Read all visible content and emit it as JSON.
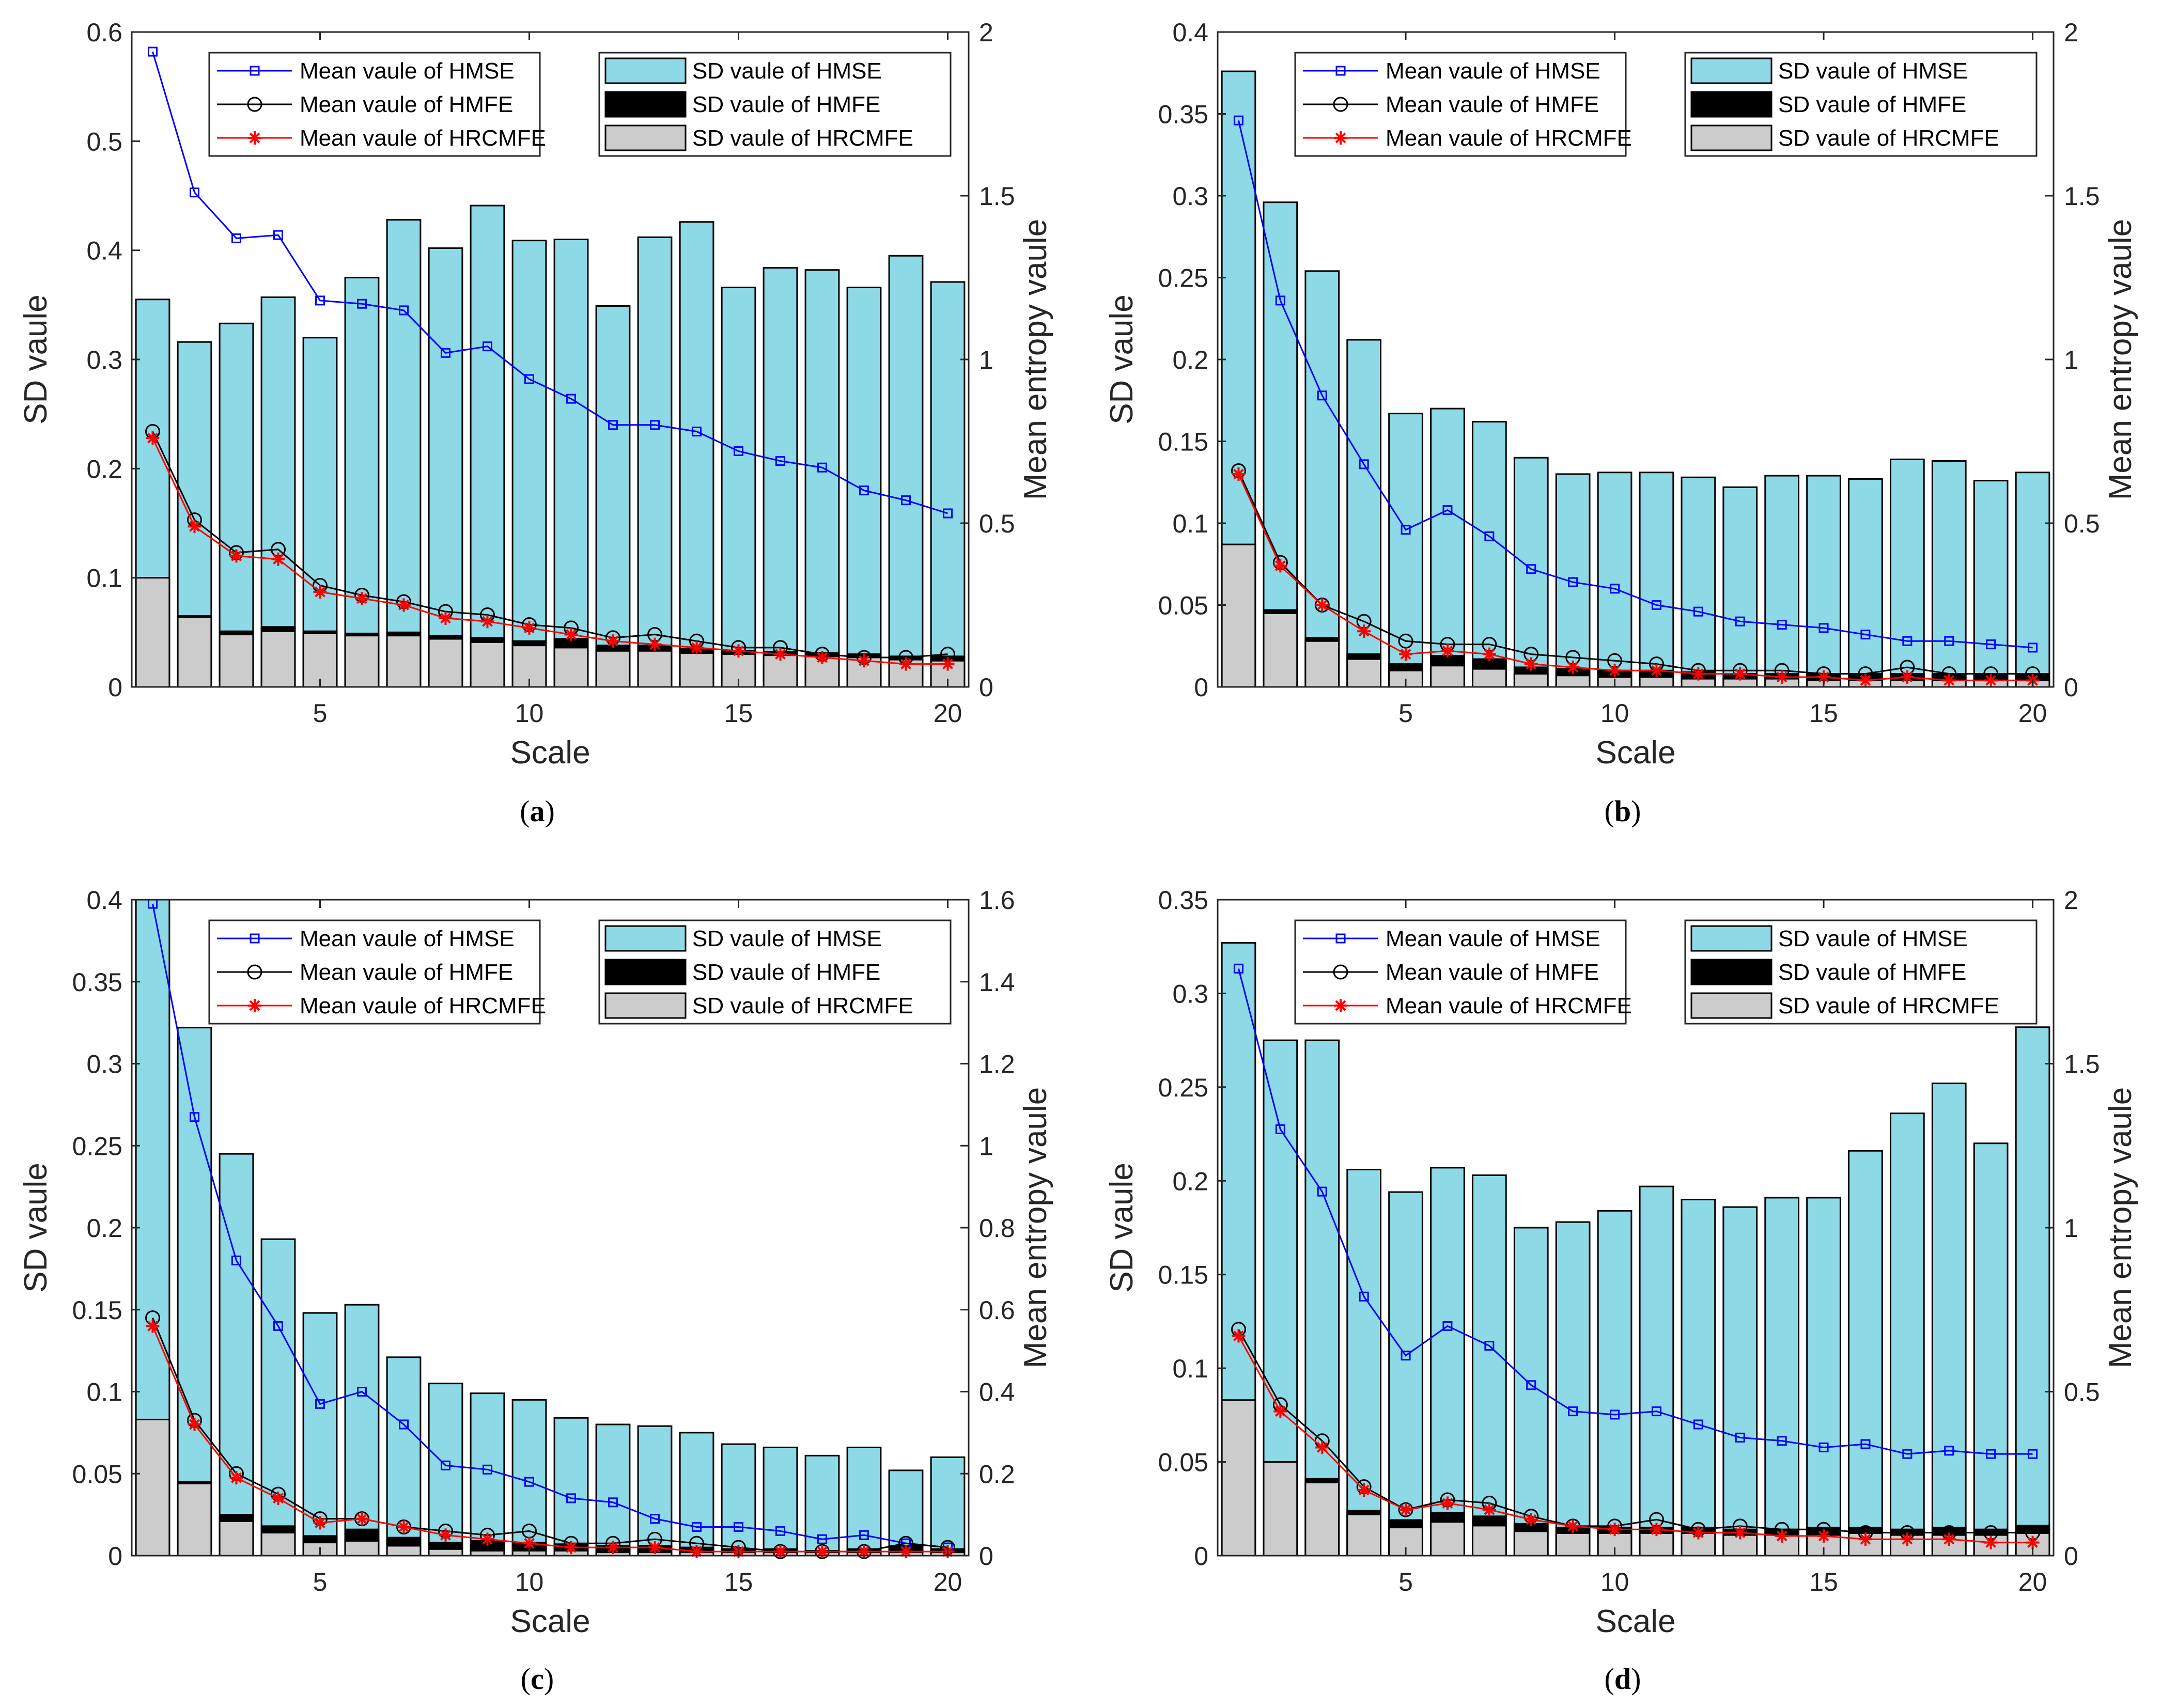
{
  "colors": {
    "hmse_bar": "#8ed9e6",
    "hmfe_bar": "#000000",
    "hrcmfe_bar": "#cccccc",
    "hmse_line": "#0000ff",
    "hmfe_line": "#000000",
    "hrcmfe_line": "#ff0000"
  },
  "chart_data": [
    {
      "type": "bar",
      "caption": {
        "open": "(",
        "letter": "a",
        "close": ")"
      },
      "xlabel": "Scale",
      "ylabel": "SD vaule",
      "y2label": "Mean entropy vaule",
      "x": [
        1,
        2,
        3,
        4,
        5,
        6,
        7,
        8,
        9,
        10,
        11,
        12,
        13,
        14,
        15,
        16,
        17,
        18,
        19,
        20
      ],
      "xlim": [
        0.5,
        20.5
      ],
      "ylim": [
        0,
        0.6
      ],
      "y2lim": [
        0,
        2
      ],
      "xticks": [
        "5",
        "10",
        "15",
        "20"
      ],
      "xtick_values": [
        5,
        10,
        15,
        20
      ],
      "yticks": [
        "0",
        "0.1",
        "0.2",
        "0.3",
        "0.4",
        "0.5",
        "0.6"
      ],
      "ytick_values": [
        0,
        0.1,
        0.2,
        0.3,
        0.4,
        0.5,
        0.6
      ],
      "y2ticks": [
        "0",
        "0.5",
        "1",
        "1.5",
        "2"
      ],
      "y2tick_values": [
        0,
        0.5,
        1,
        1.5,
        2
      ],
      "legend_lines": [
        "Mean vaule of HMSE",
        "Mean vaule of HMFE",
        "Mean vaule of HRCMFE"
      ],
      "legend_bars": [
        "SD vaule of HMSE",
        "SD vaule of HMFE",
        "SD vaule of HRCMFE"
      ],
      "sd_hmse": [
        0.355,
        0.316,
        0.333,
        0.357,
        0.32,
        0.375,
        0.428,
        0.402,
        0.441,
        0.409,
        0.41,
        0.349,
        0.412,
        0.426,
        0.366,
        0.384,
        0.382,
        0.366,
        0.395,
        0.371
      ],
      "sd_hmfe": [
        0.1,
        0.065,
        0.051,
        0.055,
        0.051,
        0.049,
        0.05,
        0.047,
        0.045,
        0.042,
        0.044,
        0.038,
        0.038,
        0.035,
        0.033,
        0.032,
        0.031,
        0.03,
        0.028,
        0.028
      ],
      "sd_hrcmfe": [
        0.1,
        0.064,
        0.048,
        0.051,
        0.049,
        0.047,
        0.047,
        0.044,
        0.041,
        0.038,
        0.036,
        0.033,
        0.033,
        0.031,
        0.03,
        0.029,
        0.028,
        0.027,
        0.025,
        0.024
      ],
      "mean_hmse": [
        1.94,
        1.51,
        1.37,
        1.38,
        1.18,
        1.17,
        1.15,
        1.02,
        1.04,
        0.94,
        0.88,
        0.8,
        0.8,
        0.78,
        0.72,
        0.69,
        0.67,
        0.6,
        0.57,
        0.53
      ],
      "mean_hmfe": [
        0.78,
        0.51,
        0.41,
        0.42,
        0.31,
        0.28,
        0.26,
        0.23,
        0.22,
        0.19,
        0.18,
        0.15,
        0.16,
        0.14,
        0.12,
        0.12,
        0.1,
        0.09,
        0.09,
        0.1
      ],
      "mean_hrcmfe": [
        0.76,
        0.49,
        0.4,
        0.39,
        0.29,
        0.27,
        0.25,
        0.21,
        0.2,
        0.18,
        0.16,
        0.14,
        0.13,
        0.12,
        0.11,
        0.1,
        0.09,
        0.08,
        0.07,
        0.07
      ]
    },
    {
      "type": "bar",
      "caption": {
        "open": "(",
        "letter": "b",
        "close": ")"
      },
      "xlabel": "Scale",
      "ylabel": "SD vaule",
      "y2label": "Mean entropy vaule",
      "x": [
        1,
        2,
        3,
        4,
        5,
        6,
        7,
        8,
        9,
        10,
        11,
        12,
        13,
        14,
        15,
        16,
        17,
        18,
        19,
        20
      ],
      "xlim": [
        0.5,
        20.5
      ],
      "ylim": [
        0,
        0.4
      ],
      "y2lim": [
        0,
        2
      ],
      "xticks": [
        "5",
        "10",
        "15",
        "20"
      ],
      "xtick_values": [
        5,
        10,
        15,
        20
      ],
      "yticks": [
        "0",
        "0.05",
        "0.1",
        "0.15",
        "0.2",
        "0.25",
        "0.3",
        "0.35",
        "0.4"
      ],
      "ytick_values": [
        0,
        0.05,
        0.1,
        0.15,
        0.2,
        0.25,
        0.3,
        0.35,
        0.4
      ],
      "y2ticks": [
        "0",
        "0.5",
        "1",
        "1.5",
        "2"
      ],
      "y2tick_values": [
        0,
        0.5,
        1,
        1.5,
        2
      ],
      "legend_lines": [
        "Mean vaule of HMSE",
        "Mean vaule of HMFE",
        "Mean vaule of HRCMFE"
      ],
      "legend_bars": [
        "SD vaule of HMSE",
        "SD vaule of HMFE",
        "SD vaule of HRCMFE"
      ],
      "sd_hmse": [
        0.376,
        0.296,
        0.254,
        0.212,
        0.167,
        0.17,
        0.162,
        0.14,
        0.13,
        0.131,
        0.131,
        0.128,
        0.122,
        0.129,
        0.129,
        0.127,
        0.139,
        0.138,
        0.126,
        0.131
      ],
      "sd_hmfe": [
        0.087,
        0.047,
        0.03,
        0.02,
        0.014,
        0.019,
        0.017,
        0.012,
        0.011,
        0.01,
        0.01,
        0.009,
        0.008,
        0.008,
        0.008,
        0.008,
        0.008,
        0.008,
        0.008,
        0.008
      ],
      "sd_hrcmfe": [
        0.087,
        0.045,
        0.028,
        0.017,
        0.01,
        0.013,
        0.011,
        0.008,
        0.007,
        0.006,
        0.006,
        0.005,
        0.005,
        0.005,
        0.004,
        0.004,
        0.004,
        0.004,
        0.004,
        0.004
      ],
      "mean_hmse": [
        1.73,
        1.18,
        0.89,
        0.68,
        0.48,
        0.54,
        0.46,
        0.36,
        0.32,
        0.3,
        0.25,
        0.23,
        0.2,
        0.19,
        0.18,
        0.16,
        0.14,
        0.14,
        0.13,
        0.12
      ],
      "mean_hmfe": [
        0.66,
        0.38,
        0.25,
        0.2,
        0.14,
        0.13,
        0.13,
        0.1,
        0.09,
        0.08,
        0.07,
        0.05,
        0.05,
        0.05,
        0.04,
        0.04,
        0.06,
        0.04,
        0.04,
        0.04
      ],
      "mean_hrcmfe": [
        0.65,
        0.37,
        0.25,
        0.17,
        0.1,
        0.11,
        0.1,
        0.07,
        0.06,
        0.05,
        0.05,
        0.04,
        0.04,
        0.03,
        0.03,
        0.02,
        0.03,
        0.02,
        0.02,
        0.02
      ]
    },
    {
      "type": "bar",
      "caption": {
        "open": "(",
        "letter": "c",
        "close": ")"
      },
      "xlabel": "Scale",
      "ylabel": "SD vaule",
      "y2label": "Mean entropy vaule",
      "x": [
        1,
        2,
        3,
        4,
        5,
        6,
        7,
        8,
        9,
        10,
        11,
        12,
        13,
        14,
        15,
        16,
        17,
        18,
        19,
        20
      ],
      "xlim": [
        0.5,
        20.5
      ],
      "ylim": [
        0,
        0.4
      ],
      "y2lim": [
        0,
        1.6
      ],
      "xticks": [
        "5",
        "10",
        "15",
        "20"
      ],
      "xtick_values": [
        5,
        10,
        15,
        20
      ],
      "yticks": [
        "0",
        "0.05",
        "0.1",
        "0.15",
        "0.2",
        "0.25",
        "0.3",
        "0.35",
        "0.4"
      ],
      "ytick_values": [
        0,
        0.05,
        0.1,
        0.15,
        0.2,
        0.25,
        0.3,
        0.35,
        0.4
      ],
      "y2ticks": [
        "0",
        "0.2",
        "0.4",
        "0.6",
        "0.8",
        "1",
        "1.2",
        "1.4",
        "1.6"
      ],
      "y2tick_values": [
        0,
        0.2,
        0.4,
        0.6,
        0.8,
        1,
        1.2,
        1.4,
        1.6
      ],
      "legend_lines": [
        "Mean vaule of HMSE",
        "Mean vaule of HMFE",
        "Mean vaule of HRCMFE"
      ],
      "legend_bars": [
        "SD vaule of HMSE",
        "SD vaule of HMFE",
        "SD vaule of HRCMFE"
      ],
      "sd_hmse": [
        0.402,
        0.322,
        0.245,
        0.193,
        0.148,
        0.153,
        0.121,
        0.105,
        0.099,
        0.095,
        0.084,
        0.08,
        0.079,
        0.075,
        0.068,
        0.066,
        0.061,
        0.066,
        0.052,
        0.06
      ],
      "sd_hmfe": [
        0.083,
        0.045,
        0.025,
        0.018,
        0.012,
        0.016,
        0.011,
        0.008,
        0.009,
        0.008,
        0.007,
        0.006,
        0.006,
        0.005,
        0.004,
        0.004,
        0.003,
        0.004,
        0.006,
        0.004
      ],
      "sd_hrcmfe": [
        0.083,
        0.044,
        0.021,
        0.014,
        0.008,
        0.009,
        0.006,
        0.004,
        0.003,
        0.003,
        0.003,
        0.002,
        0.002,
        0.002,
        0.002,
        0.002,
        0.002,
        0.002,
        0.002,
        0.002
      ],
      "mean_hmse": [
        1.59,
        1.07,
        0.72,
        0.56,
        0.37,
        0.4,
        0.32,
        0.22,
        0.21,
        0.18,
        0.14,
        0.13,
        0.09,
        0.07,
        0.07,
        0.06,
        0.04,
        0.05,
        0.03,
        0.02
      ],
      "mean_hmfe": [
        0.58,
        0.33,
        0.2,
        0.15,
        0.09,
        0.09,
        0.07,
        0.06,
        0.05,
        0.06,
        0.03,
        0.03,
        0.04,
        0.03,
        0.02,
        0.01,
        0.01,
        0.01,
        0.03,
        0.02
      ],
      "mean_hrcmfe": [
        0.56,
        0.32,
        0.19,
        0.14,
        0.08,
        0.09,
        0.07,
        0.05,
        0.04,
        0.03,
        0.02,
        0.02,
        0.02,
        0.01,
        0.01,
        0.01,
        0.01,
        0.01,
        0.01,
        0.01
      ]
    },
    {
      "type": "bar",
      "caption": {
        "open": "(",
        "letter": "d",
        "close": ")"
      },
      "xlabel": "Scale",
      "ylabel": "SD vaule",
      "y2label": "Mean entropy vaule",
      "x": [
        1,
        2,
        3,
        4,
        5,
        6,
        7,
        8,
        9,
        10,
        11,
        12,
        13,
        14,
        15,
        16,
        17,
        18,
        19,
        20
      ],
      "xlim": [
        0.5,
        20.5
      ],
      "ylim": [
        0,
        0.35
      ],
      "y2lim": [
        0,
        2
      ],
      "xticks": [
        "5",
        "10",
        "15",
        "20"
      ],
      "xtick_values": [
        5,
        10,
        15,
        20
      ],
      "yticks": [
        "0",
        "0.05",
        "0.1",
        "0.15",
        "0.2",
        "0.25",
        "0.3",
        "0.35"
      ],
      "ytick_values": [
        0,
        0.05,
        0.1,
        0.15,
        0.2,
        0.25,
        0.3,
        0.35
      ],
      "y2ticks": [
        "0",
        "0.5",
        "1",
        "1.5",
        "2"
      ],
      "y2tick_values": [
        0,
        0.5,
        1,
        1.5,
        2
      ],
      "legend_lines": [
        "Mean vaule of HMSE",
        "Mean vaule of HMFE",
        "Mean vaule of HRCMFE"
      ],
      "legend_bars": [
        "SD vaule of HMSE",
        "SD vaule of HMFE",
        "SD vaule of HRCMFE"
      ],
      "sd_hmse": [
        0.327,
        0.275,
        0.275,
        0.206,
        0.194,
        0.207,
        0.203,
        0.175,
        0.178,
        0.184,
        0.197,
        0.19,
        0.186,
        0.191,
        0.191,
        0.216,
        0.236,
        0.252,
        0.22,
        0.282
      ],
      "sd_hmfe": [
        0.083,
        0.05,
        0.041,
        0.024,
        0.019,
        0.023,
        0.021,
        0.017,
        0.015,
        0.015,
        0.015,
        0.015,
        0.014,
        0.014,
        0.015,
        0.015,
        0.014,
        0.015,
        0.014,
        0.016
      ],
      "sd_hrcmfe": [
        0.083,
        0.05,
        0.039,
        0.022,
        0.015,
        0.018,
        0.016,
        0.013,
        0.012,
        0.012,
        0.012,
        0.012,
        0.011,
        0.011,
        0.011,
        0.012,
        0.011,
        0.011,
        0.011,
        0.012
      ],
      "mean_hmse": [
        1.79,
        1.3,
        1.11,
        0.79,
        0.61,
        0.7,
        0.64,
        0.52,
        0.44,
        0.43,
        0.44,
        0.4,
        0.36,
        0.35,
        0.33,
        0.34,
        0.31,
        0.32,
        0.31,
        0.31
      ],
      "mean_hmfe": [
        0.69,
        0.46,
        0.35,
        0.21,
        0.14,
        0.17,
        0.16,
        0.12,
        0.09,
        0.09,
        0.11,
        0.08,
        0.09,
        0.08,
        0.08,
        0.07,
        0.07,
        0.07,
        0.07,
        0.07
      ],
      "mean_hrcmfe": [
        0.67,
        0.44,
        0.33,
        0.2,
        0.14,
        0.16,
        0.14,
        0.11,
        0.09,
        0.08,
        0.08,
        0.07,
        0.07,
        0.06,
        0.06,
        0.05,
        0.05,
        0.05,
        0.04,
        0.04
      ]
    }
  ]
}
